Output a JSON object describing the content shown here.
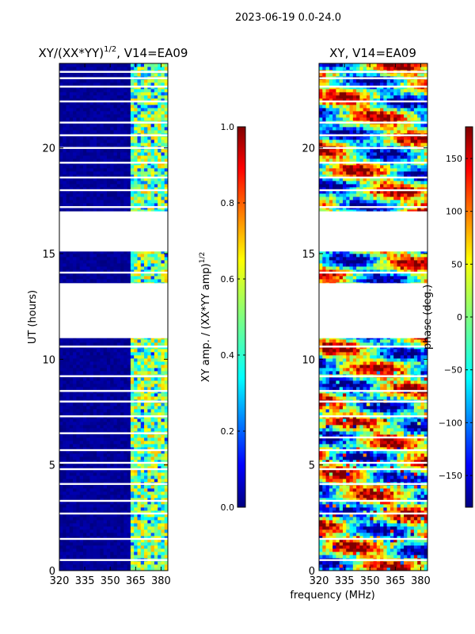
{
  "figure": {
    "suptitle": "2023-06-19 0.0-24.0",
    "xlabel": "frequency (MHz)",
    "ylabel": "UT (hours)"
  },
  "chart_data": [
    {
      "type": "heatmap",
      "title_main": "XY/(XX*YY)",
      "title_exp": "1/2",
      "title_rest": ", V14=EA09",
      "x_ticks": [
        320,
        335,
        350,
        365,
        380
      ],
      "xlim": [
        320,
        384
      ],
      "y_ticks": [
        0,
        5,
        10,
        15,
        20
      ],
      "ylim": [
        0,
        24
      ],
      "colorbar": {
        "label_main": "XY amp. / (XX*YY amp)",
        "label_exp": "1/2",
        "ticks": [
          "0.0",
          "0.2",
          "0.4",
          "0.6",
          "0.8",
          "1.0"
        ],
        "tick_values": [
          0,
          0.2,
          0.4,
          0.6,
          0.8,
          1.0
        ],
        "range": [
          0,
          1
        ]
      },
      "gaps_hours": [
        [
          11.0,
          13.6
        ],
        [
          15.1,
          17.0
        ]
      ],
      "white_lines_hours": [
        0.5,
        1.5,
        2.7,
        3.3,
        4.1,
        4.8,
        5.1,
        5.7,
        6.5,
        7.3,
        8.0,
        8.5,
        9.2,
        10.6,
        14.1,
        17.2,
        18.0,
        18.6,
        19.3,
        20.0,
        20.6,
        21.2,
        22.2,
        22.9,
        23.3,
        23.6
      ],
      "bright_band_mhz": [
        362,
        384
      ],
      "values_description_level_low": 0.0,
      "values_description_level_band": 0.5
    },
    {
      "type": "heatmap",
      "title_main": "XY, V14=EA09",
      "x_ticks": [
        320,
        335,
        350,
        365,
        380
      ],
      "xlim": [
        320,
        384
      ],
      "y_ticks": [
        0,
        5,
        10,
        15,
        20
      ],
      "ylim": [
        0,
        24
      ],
      "colorbar": {
        "label_main": "phase (deg.)",
        "ticks": [
          "−150",
          "−100",
          "−50",
          "0",
          "50",
          "100",
          "150"
        ],
        "tick_values": [
          -150,
          -100,
          -50,
          0,
          50,
          100,
          150
        ],
        "range": [
          -180,
          180
        ]
      },
      "gaps_hours": [
        [
          11.0,
          13.6
        ],
        [
          15.1,
          17.0
        ]
      ],
      "white_lines_hours": [
        0.5,
        1.5,
        2.7,
        3.3,
        4.1,
        4.8,
        5.1,
        5.7,
        6.3,
        7.3,
        8.0,
        8.5,
        9.2,
        10.6,
        14.1,
        17.2,
        18.0,
        18.6,
        19.3,
        20.0,
        20.6,
        21.2,
        22.2,
        22.9,
        23.3,
        23.6
      ]
    }
  ],
  "colors": {
    "jet": [
      "#00007f",
      "#0000ff",
      "#007fff",
      "#00ffff",
      "#7fff7f",
      "#ffff00",
      "#ff7f00",
      "#ff0000",
      "#7f0000"
    ]
  }
}
